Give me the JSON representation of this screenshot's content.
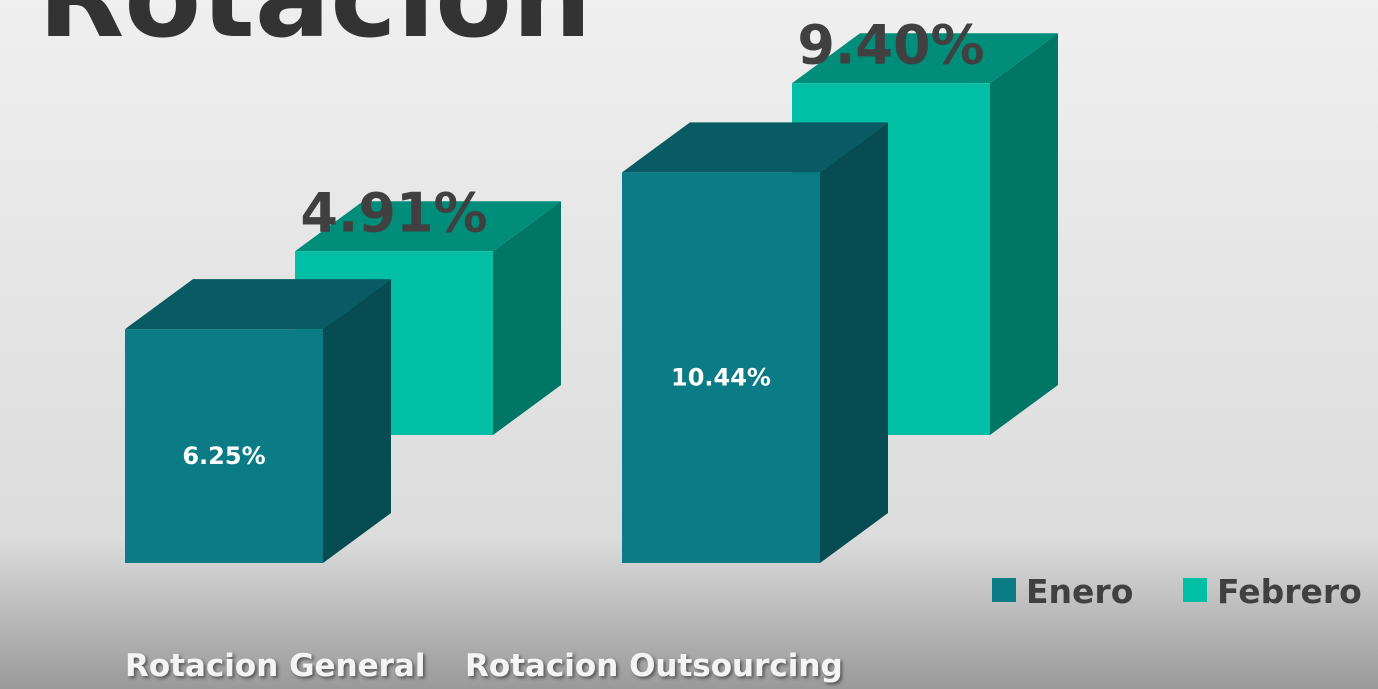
{
  "chart_data": {
    "type": "bar",
    "title": "Rotacion",
    "categories": [
      "Rotacion General",
      "Rotacion Outsourcing"
    ],
    "series": [
      {
        "name": "Enero",
        "color": "#0b7b86",
        "values": [
          6.25,
          10.44
        ],
        "value_labels": [
          "6.25%",
          "10.44%"
        ]
      },
      {
        "name": "Febrero",
        "color": "#00bfa5",
        "values": [
          4.91,
          9.4
        ],
        "value_labels": [
          "4.91%",
          "9.40%"
        ]
      }
    ],
    "ylim": [
      0,
      12
    ]
  }
}
